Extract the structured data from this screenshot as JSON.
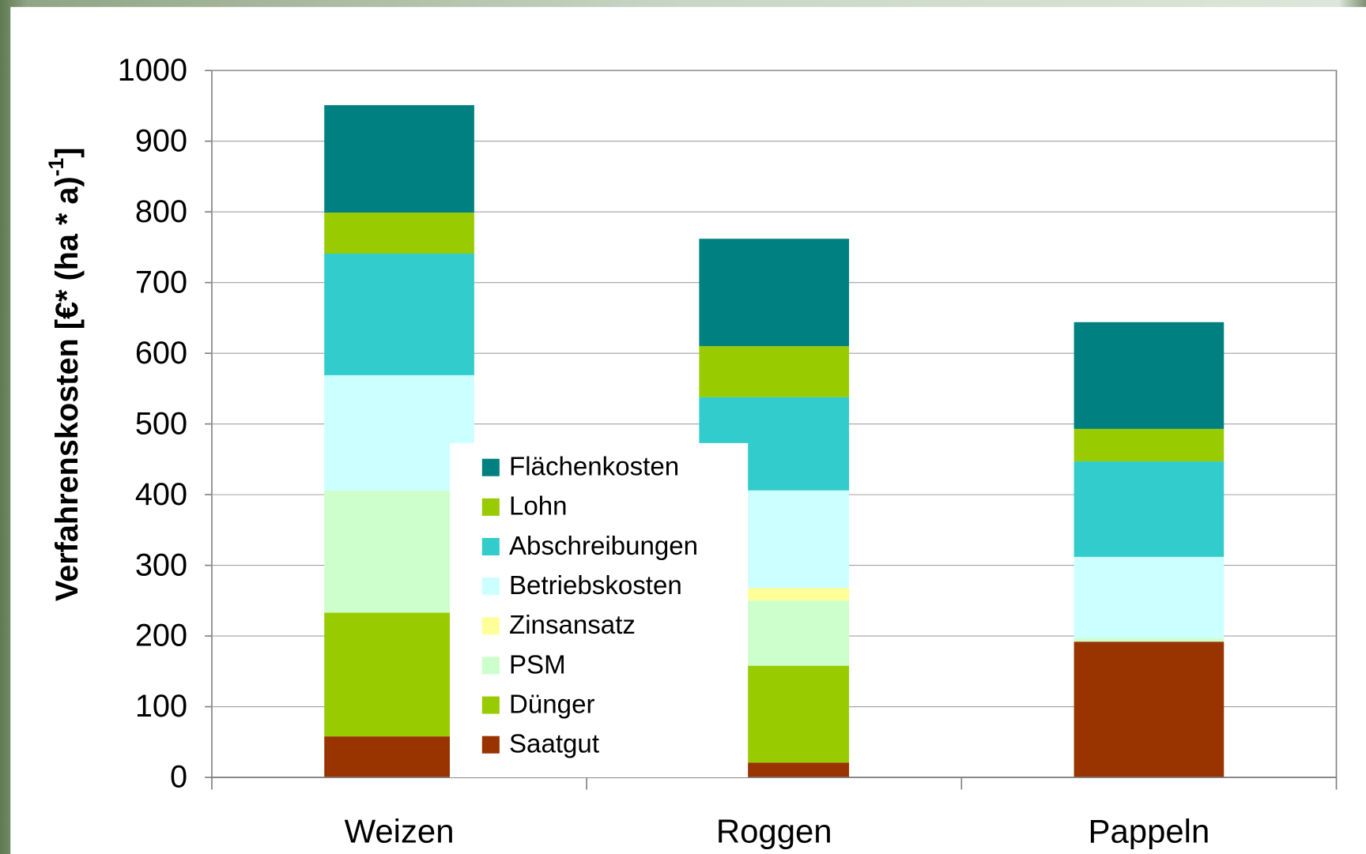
{
  "chart_data": {
    "type": "bar",
    "stacked": true,
    "y_label": "Verfahrenskosten [€* (ha * a)",
    "y_label_sup": "-1",
    "y_label_end": "]",
    "categories": [
      "Weizen",
      "Roggen",
      "Pappeln"
    ],
    "series": [
      {
        "name": "Saatgut",
        "color": "#993300",
        "values": [
          58,
          21,
          192
        ]
      },
      {
        "name": "Dünger",
        "color": "#99cc00",
        "values": [
          175,
          137,
          0
        ]
      },
      {
        "name": "PSM",
        "color": "#ccffcc",
        "values": [
          173,
          92,
          5
        ]
      },
      {
        "name": "Zinsansatz",
        "color": "#ffff99",
        "values": [
          0,
          18,
          0
        ]
      },
      {
        "name": "Betriebskosten",
        "color": "#ccffff",
        "values": [
          163,
          138,
          115
        ]
      },
      {
        "name": "Abschreibungen",
        "color": "#33cccc",
        "values": [
          172,
          132,
          135
        ]
      },
      {
        "name": "Lohn",
        "color": "#99cc00",
        "values": [
          58,
          72,
          46
        ]
      },
      {
        "name": "Flächenkosten",
        "color": "#008080",
        "values": [
          152,
          152,
          151
        ]
      }
    ],
    "ylim": [
      0,
      1000
    ],
    "yticks": [
      0,
      100,
      200,
      300,
      400,
      500,
      600,
      700,
      800,
      900,
      1000
    ],
    "grid": true
  }
}
